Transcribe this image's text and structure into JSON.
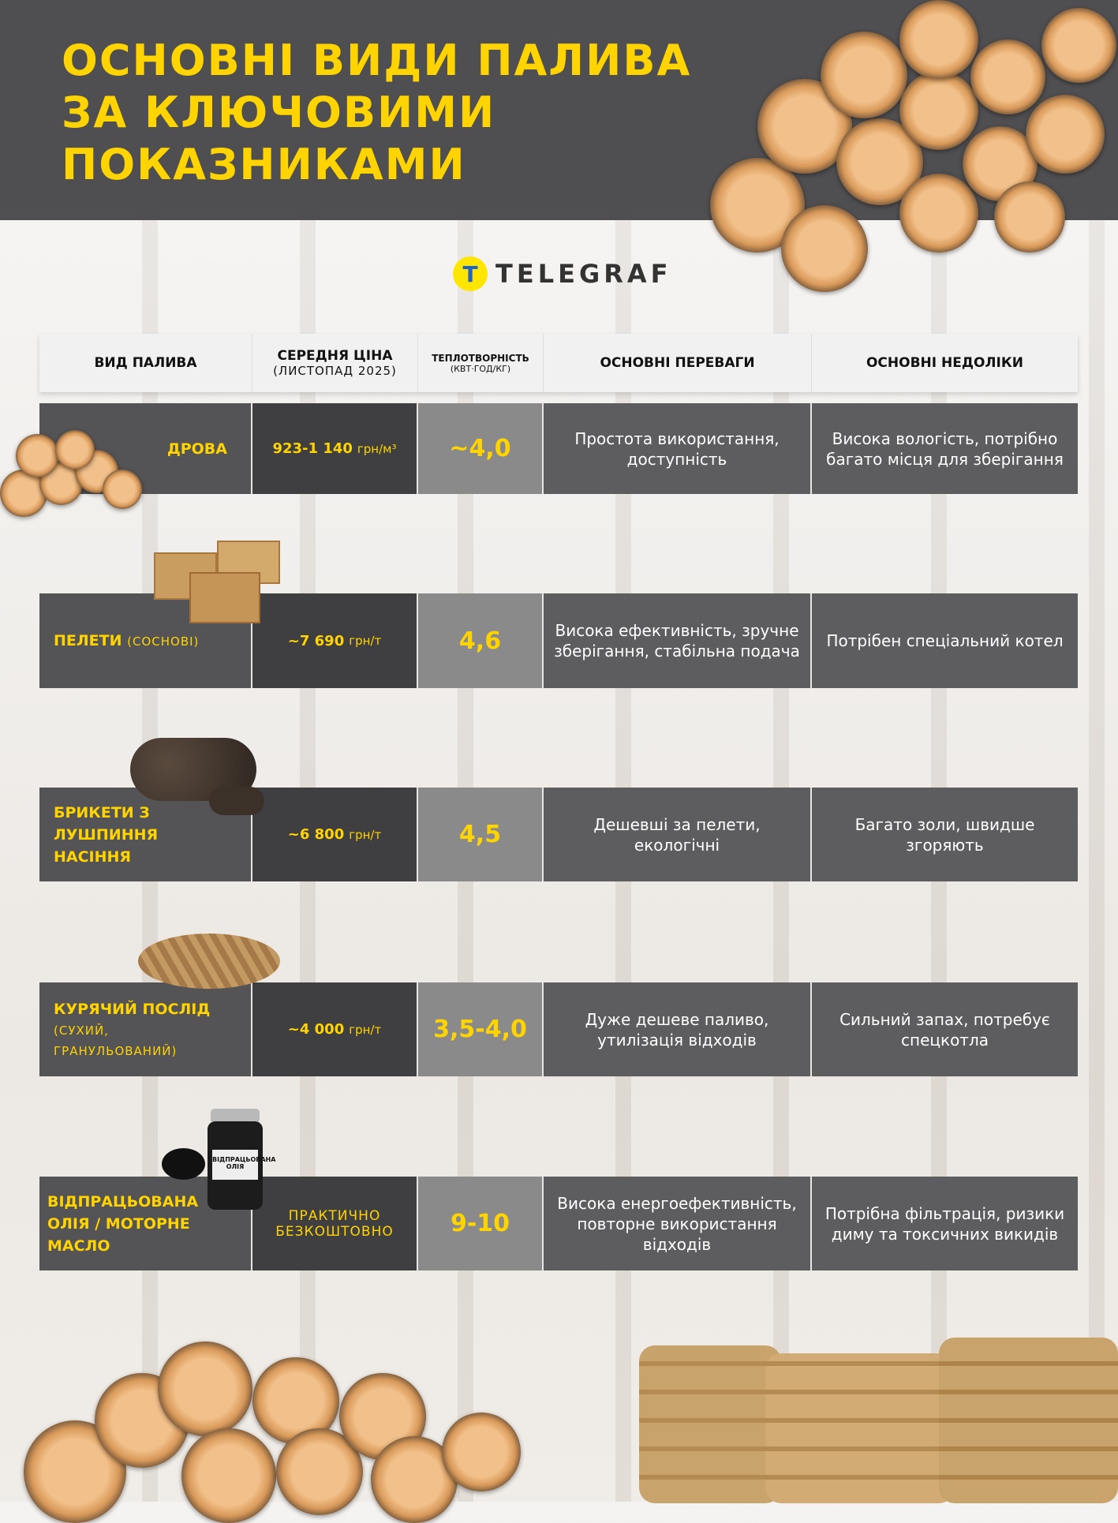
{
  "title": [
    "ОСНОВНІ ВИДИ ПАЛИВА",
    "ЗА КЛЮЧОВИМИ",
    "ПОКАЗНИКАМИ"
  ],
  "brand": {
    "mark": "T",
    "name": "TELEGRAF",
    "colors": {
      "accent": "#ffd400",
      "header_bg": "#4f4e50"
    }
  },
  "table": {
    "headers": [
      {
        "label": "ВИД ПАЛИВА"
      },
      {
        "label": "СЕРЕДНЯ ЦІНА",
        "sub": "(ЛИСТОПАД 2025)"
      },
      {
        "label": "ТЕПЛОТВОРНІСТЬ",
        "sub": "(КВТ·ГОД/КГ)"
      },
      {
        "label": "ОСНОВНІ ПЕРЕВАГИ"
      },
      {
        "label": "ОСНОВНІ НЕДОЛІКИ"
      }
    ],
    "rows": [
      {
        "name": "ДРОВА",
        "name_sub": "",
        "price": "923-1 140",
        "unit": "грн/м³",
        "heat": "~4,0",
        "pros": "Простота використання, доступність",
        "cons": "Висока вологість, потрібно багато місця для зберігання"
      },
      {
        "name": "ПЕЛЕТИ",
        "name_sub": "(СОСНОВІ)",
        "price": "~7 690",
        "unit": "грн/т",
        "heat": "4,6",
        "pros": "Висока ефективність, зручне зберігання, стабільна подача",
        "cons": "Потрібен спеціальний котел"
      },
      {
        "name": "БРИКЕТИ З ЛУШПИННЯ НАСІННЯ",
        "name_sub": "",
        "price": "~6 800",
        "unit": "грн/т",
        "heat": "4,5",
        "pros": "Дешевші за пелети, екологічні",
        "cons": "Багато золи, швидше згоряють"
      },
      {
        "name": "КУРЯЧИЙ ПОСЛІД",
        "name_sub": "(СУХИЙ, ГРАНУЛЬОВАНИЙ)",
        "price": "~4 000",
        "unit": "грн/т",
        "heat": "3,5-4,0",
        "pros": "Дуже дешеве паливо, утилізація відходів",
        "cons": "Сильний запах, потребує спецкотла"
      },
      {
        "name": "ВІДПРАЦЬОВАНА ОЛІЯ / МОТОРНЕ МАСЛО",
        "name_sub": "",
        "price": "ПРАКТИЧНО БЕЗКОШТОВНО",
        "unit": "",
        "heat": "9-10",
        "pros": "Висока енергоефективність, повторне використання відходів",
        "cons": "Потрібна фільтрація, ризики диму та токсичних викидів"
      }
    ]
  },
  "jar_label": "ВІДПРАЦЬОВАНА ОЛІЯ"
}
